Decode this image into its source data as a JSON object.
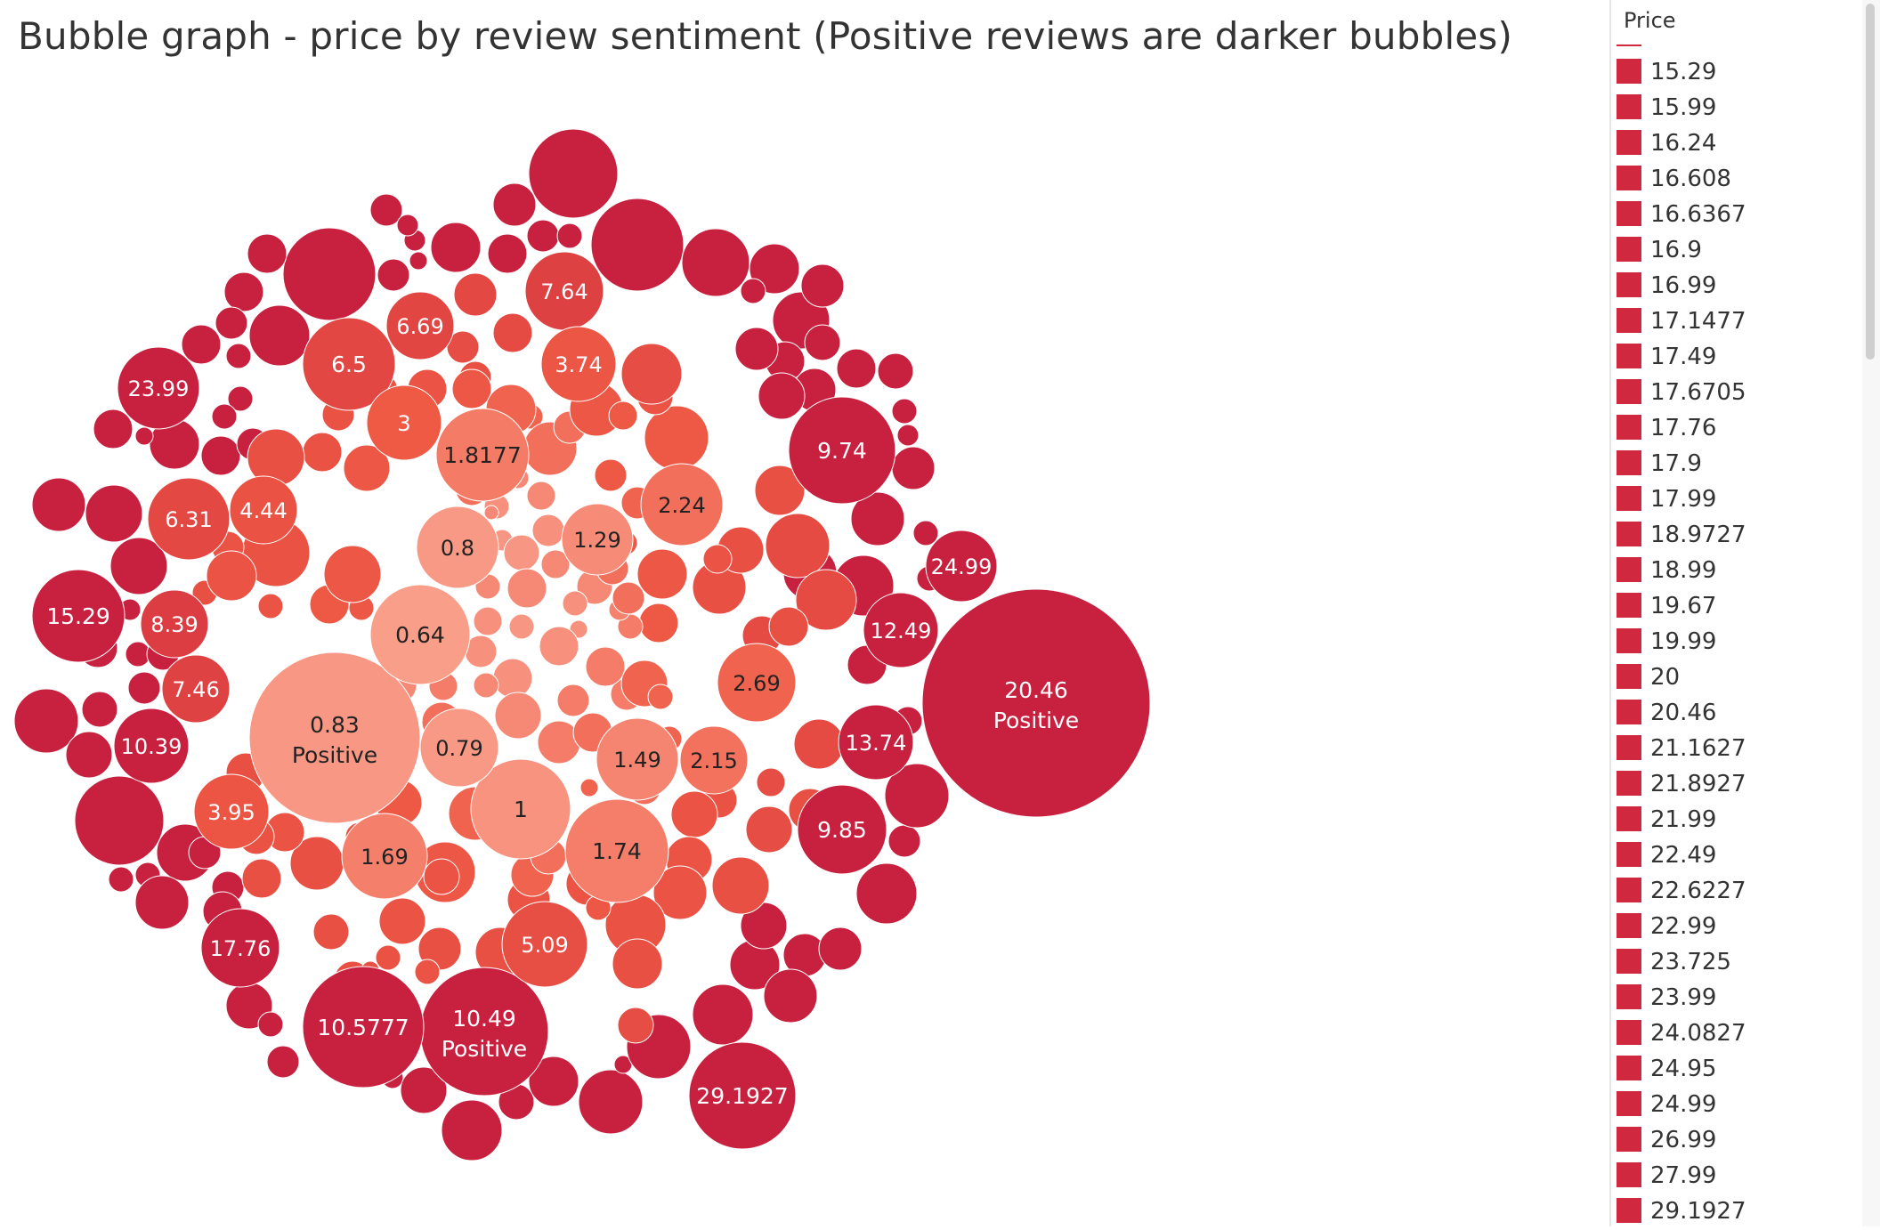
{
  "title": "Bubble graph - price by review sentiment (Positive reviews are darker bubbles)",
  "legend": {
    "title": "Price",
    "items": [
      "15.29",
      "15.99",
      "16.24",
      "16.608",
      "16.6367",
      "16.9",
      "16.99",
      "17.1477",
      "17.49",
      "17.6705",
      "17.76",
      "17.9",
      "17.99",
      "18.9727",
      "18.99",
      "19.67",
      "19.99",
      "20",
      "20.46",
      "21.1627",
      "21.8927",
      "21.99",
      "22.49",
      "22.6227",
      "22.99",
      "23.725",
      "23.99",
      "24.0827",
      "24.95",
      "24.99",
      "26.99",
      "27.99",
      "29.1927"
    ]
  },
  "colors": {
    "high": "#c8203f",
    "mid": "#ef5a45",
    "low": "#fbb09c",
    "legend_swatch": "#d0283f",
    "accent_line": "#d0283f",
    "label_light": "#ffffff",
    "label_dark": "#222222"
  },
  "chart_data": {
    "type": "bubble",
    "title": "Bubble graph - price by review sentiment (Positive reviews are darker bubbles)",
    "size_and_color": "Price",
    "labeled_bubbles": [
      {
        "price": 20.46,
        "label": "20.46",
        "sentiment": "Positive"
      },
      {
        "price": 0.83,
        "label": "0.83",
        "sentiment": "Positive"
      },
      {
        "price": 10.49,
        "label": "10.49",
        "sentiment": "Positive"
      },
      {
        "price": 29.1927,
        "label": "29.1927"
      },
      {
        "price": 10.5777,
        "label": "10.5777"
      },
      {
        "price": 9.74,
        "label": "9.74"
      },
      {
        "price": 9.85,
        "label": "9.85"
      },
      {
        "price": 23.99,
        "label": "23.99"
      },
      {
        "price": 24.99,
        "label": "24.99"
      },
      {
        "price": 15.29,
        "label": "15.29"
      },
      {
        "price": 12.49,
        "label": "12.49"
      },
      {
        "price": 13.74,
        "label": "13.74"
      },
      {
        "price": 17.76,
        "label": "17.76"
      },
      {
        "price": 10.39,
        "label": "10.39"
      },
      {
        "price": 8.39,
        "label": "8.39"
      },
      {
        "price": 7.46,
        "label": "7.46"
      },
      {
        "price": 7.64,
        "label": "7.64"
      },
      {
        "price": 6.69,
        "label": "6.69"
      },
      {
        "price": 6.5,
        "label": "6.5"
      },
      {
        "price": 6.31,
        "label": "6.31"
      },
      {
        "price": 5.09,
        "label": "5.09"
      },
      {
        "price": 4.44,
        "label": "4.44"
      },
      {
        "price": 3.95,
        "label": "3.95"
      },
      {
        "price": 3.74,
        "label": "3.74"
      },
      {
        "price": 3,
        "label": "3"
      },
      {
        "price": 2.69,
        "label": "2.69"
      },
      {
        "price": 2.24,
        "label": "2.24"
      },
      {
        "price": 2.15,
        "label": "2.15"
      },
      {
        "price": 1.8177,
        "label": "1.8177"
      },
      {
        "price": 1.74,
        "label": "1.74"
      },
      {
        "price": 1.69,
        "label": "1.69"
      },
      {
        "price": 1.49,
        "label": "1.49"
      },
      {
        "price": 1.29,
        "label": "1.29"
      },
      {
        "price": 1,
        "label": "1"
      },
      {
        "price": 0.8,
        "label": "0.8"
      },
      {
        "price": 0.79,
        "label": "0.79"
      },
      {
        "price": 0.64,
        "label": "0.64"
      }
    ]
  }
}
